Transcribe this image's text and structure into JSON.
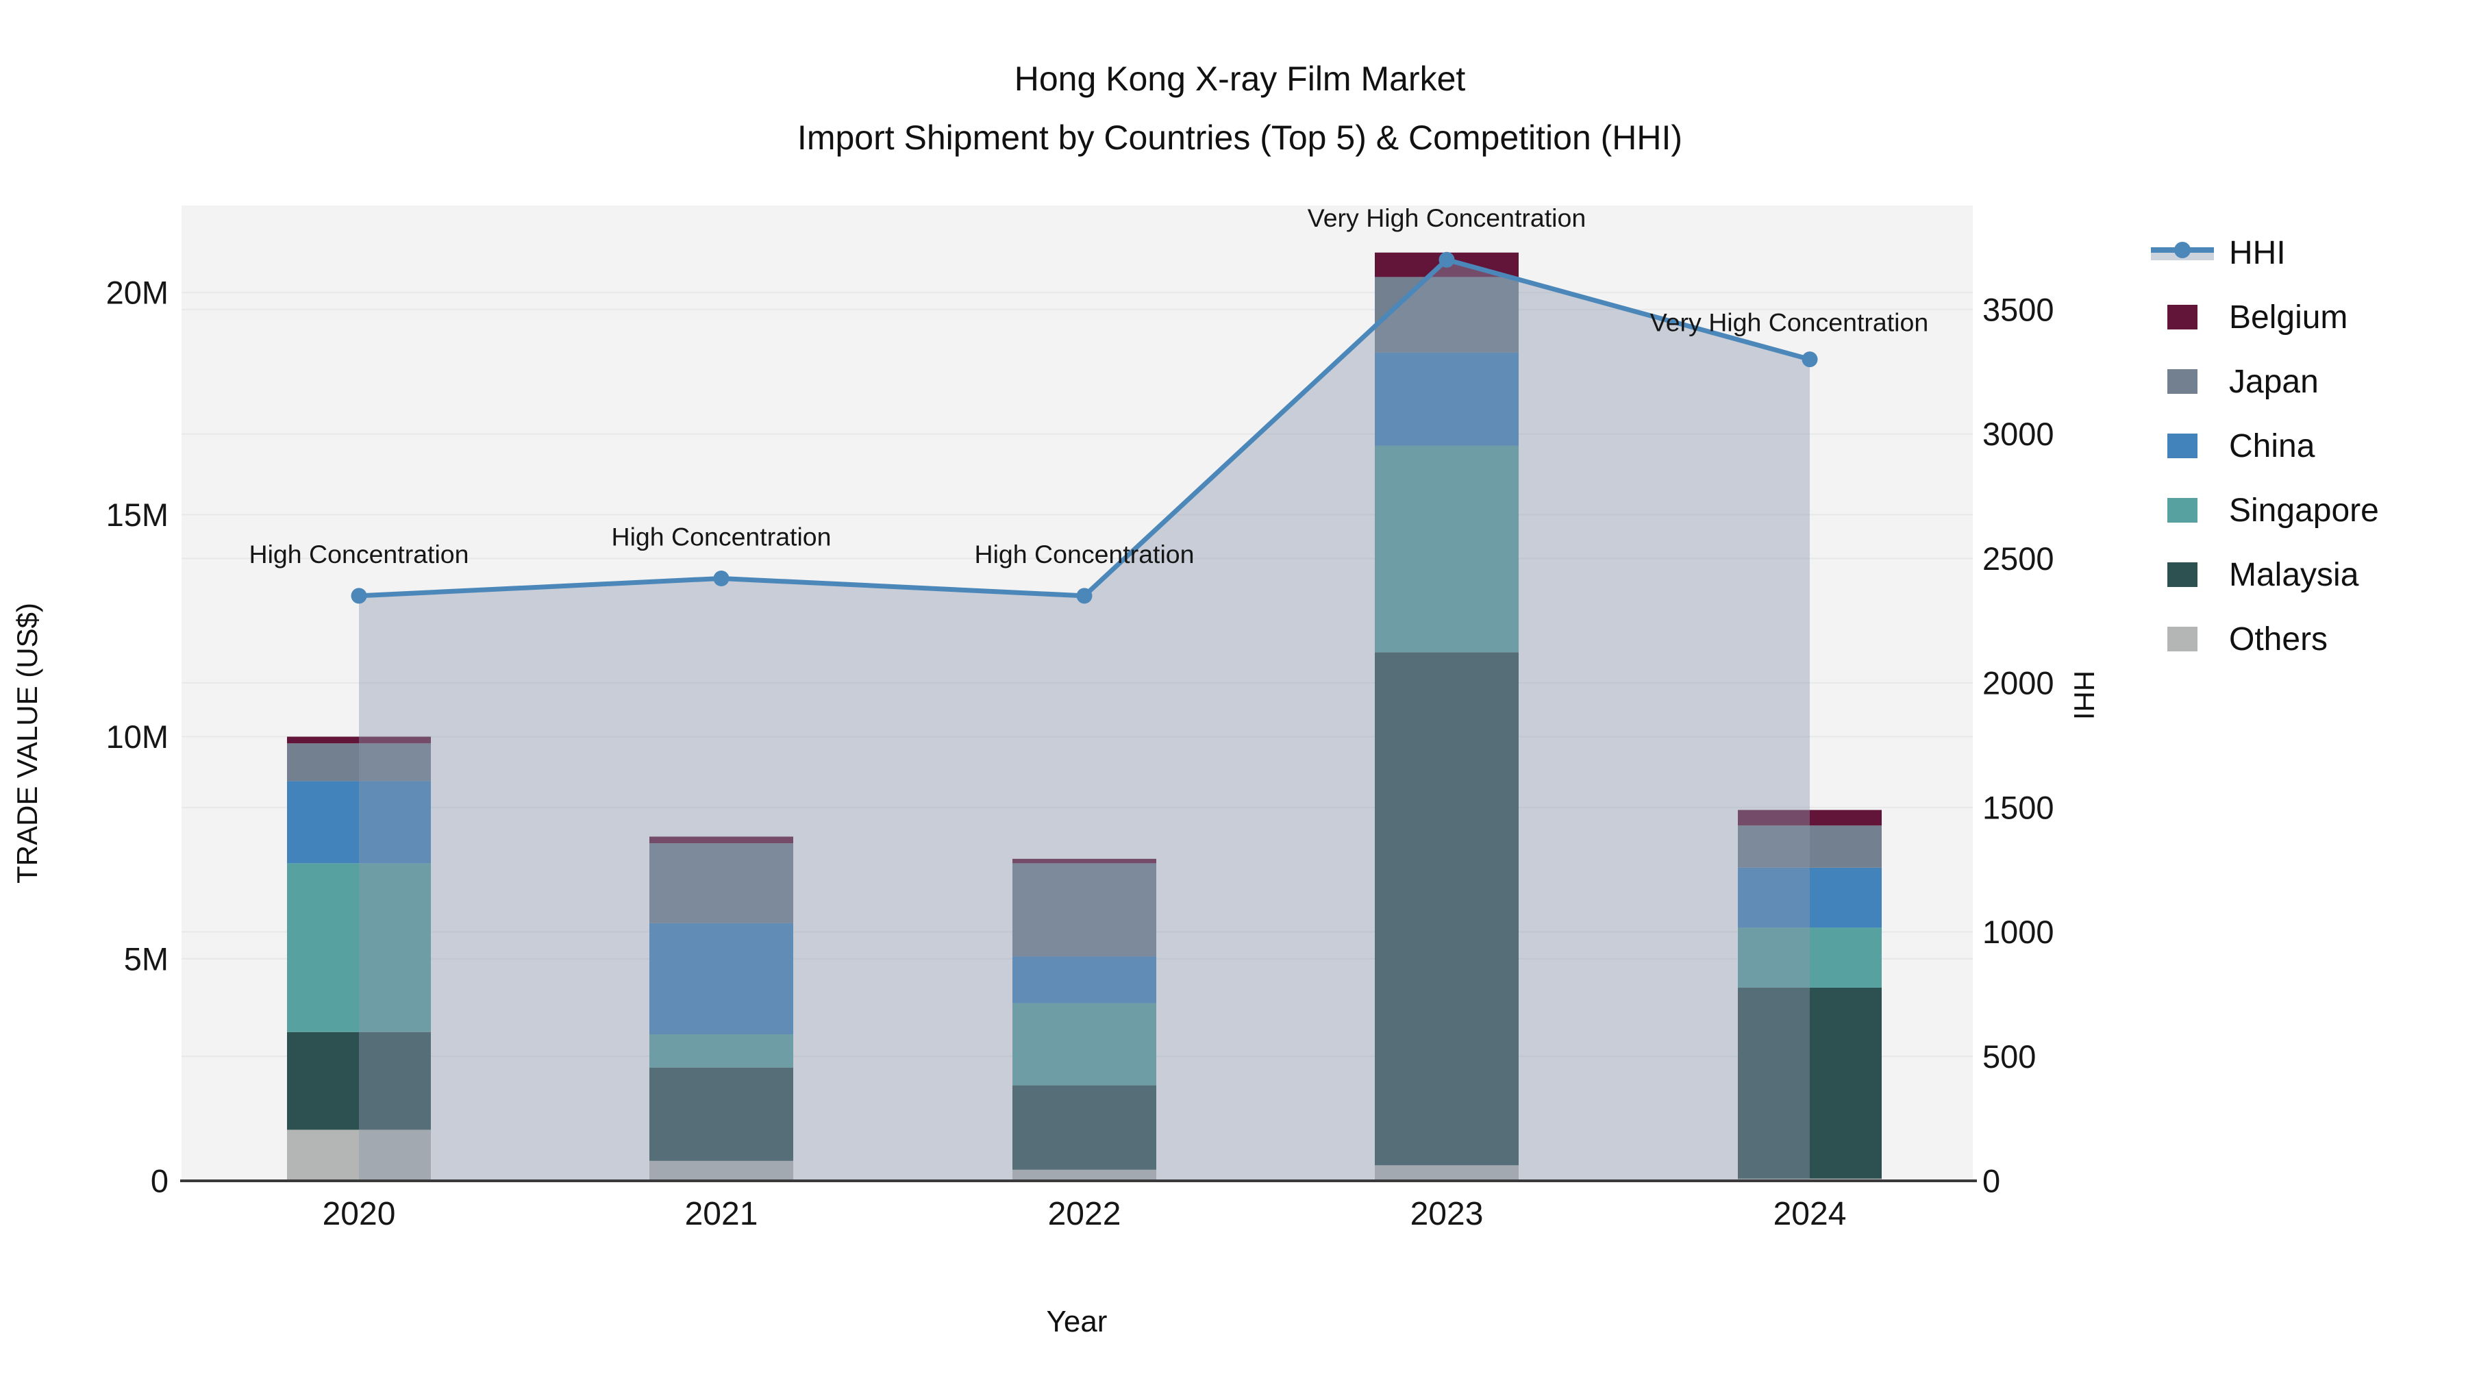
{
  "chart_data": {
    "type": "combo-stacked-bar-line",
    "title": "Hong Kong X-ray Film Market",
    "subtitle": "Import Shipment by Countries (Top 5) & Competition (HHI)",
    "xlabel": "Year",
    "categories": [
      "2020",
      "2021",
      "2022",
      "2023",
      "2024"
    ],
    "bar_value_unit": "million US$",
    "stack_order_bottom_to_top": [
      "Others",
      "Malaysia",
      "Singapore",
      "China",
      "Japan",
      "Belgium"
    ],
    "series": [
      {
        "name": "Others",
        "color": "#b3b6b4",
        "values": [
          1.15,
          0.45,
          0.25,
          0.35,
          0.05
        ]
      },
      {
        "name": "Malaysia",
        "color": "#2d5050",
        "values": [
          2.2,
          2.1,
          1.9,
          11.55,
          4.3
        ]
      },
      {
        "name": "Singapore",
        "color": "#58a1a1",
        "values": [
          3.8,
          0.75,
          1.85,
          4.65,
          1.35
        ]
      },
      {
        "name": "China",
        "color": "#4383bc",
        "values": [
          1.85,
          2.5,
          1.05,
          2.1,
          1.35
        ]
      },
      {
        "name": "Japan",
        "color": "#72808f",
        "values": [
          0.85,
          1.8,
          2.1,
          1.7,
          0.95
        ]
      },
      {
        "name": "Belgium",
        "color": "#621539",
        "values": [
          0.15,
          0.15,
          0.1,
          0.55,
          0.35
        ]
      }
    ],
    "bar_totals": [
      10.0,
      7.75,
      7.25,
      20.9,
      8.35
    ],
    "line_series": {
      "name": "HHI",
      "color": "#4c87ba",
      "area_fill": "rgba(140,153,173,0.42)",
      "values": [
        2350,
        2420,
        2350,
        3700,
        3300
      ]
    },
    "annotations": [
      {
        "text": "High Concentration",
        "dx": 0,
        "dy": 0
      },
      {
        "text": "High Concentration",
        "dx": 0,
        "dy": 0
      },
      {
        "text": "High Concentration",
        "dx": 0,
        "dy": 0
      },
      {
        "text": "Very High Concentration",
        "dx": 0,
        "dy": 0
      },
      {
        "text": "Very High Concentration",
        "dx": -30,
        "dy": 7
      }
    ],
    "left_axis": {
      "label": "TRADE VALUE (US$)",
      "max": 21.96,
      "ticks": [
        {
          "v": 0,
          "label": "0"
        },
        {
          "v": 5,
          "label": "5M"
        },
        {
          "v": 10,
          "label": "10M"
        },
        {
          "v": 15,
          "label": "15M"
        },
        {
          "v": 20,
          "label": "20M"
        }
      ]
    },
    "right_axis": {
      "label": "HHI",
      "max": 3918,
      "ticks": [
        {
          "v": 0,
          "label": "0"
        },
        {
          "v": 500,
          "label": "500"
        },
        {
          "v": 1000,
          "label": "1000"
        },
        {
          "v": 1500,
          "label": "1500"
        },
        {
          "v": 2000,
          "label": "2000"
        },
        {
          "v": 2500,
          "label": "2500"
        },
        {
          "v": 3000,
          "label": "3000"
        },
        {
          "v": 3500,
          "label": "3500"
        }
      ]
    },
    "legend": [
      {
        "label": "HHI",
        "type": "line",
        "color": "#4c87ba",
        "band": "#ccd3dc"
      },
      {
        "label": "Belgium",
        "type": "patch",
        "color": "#621539"
      },
      {
        "label": "Japan",
        "type": "patch",
        "color": "#72808f"
      },
      {
        "label": "China",
        "type": "patch",
        "color": "#4383bc"
      },
      {
        "label": "Singapore",
        "type": "patch",
        "color": "#58a1a1"
      },
      {
        "label": "Malaysia",
        "type": "patch",
        "color": "#2d5050"
      },
      {
        "label": "Others",
        "type": "patch",
        "color": "#b3b6b4"
      }
    ],
    "style": {
      "plot_background": "#f3f3f4",
      "grid_color": "#e7e8ea",
      "spine_color": "#3a3a3a",
      "text_color": "#161616"
    }
  }
}
